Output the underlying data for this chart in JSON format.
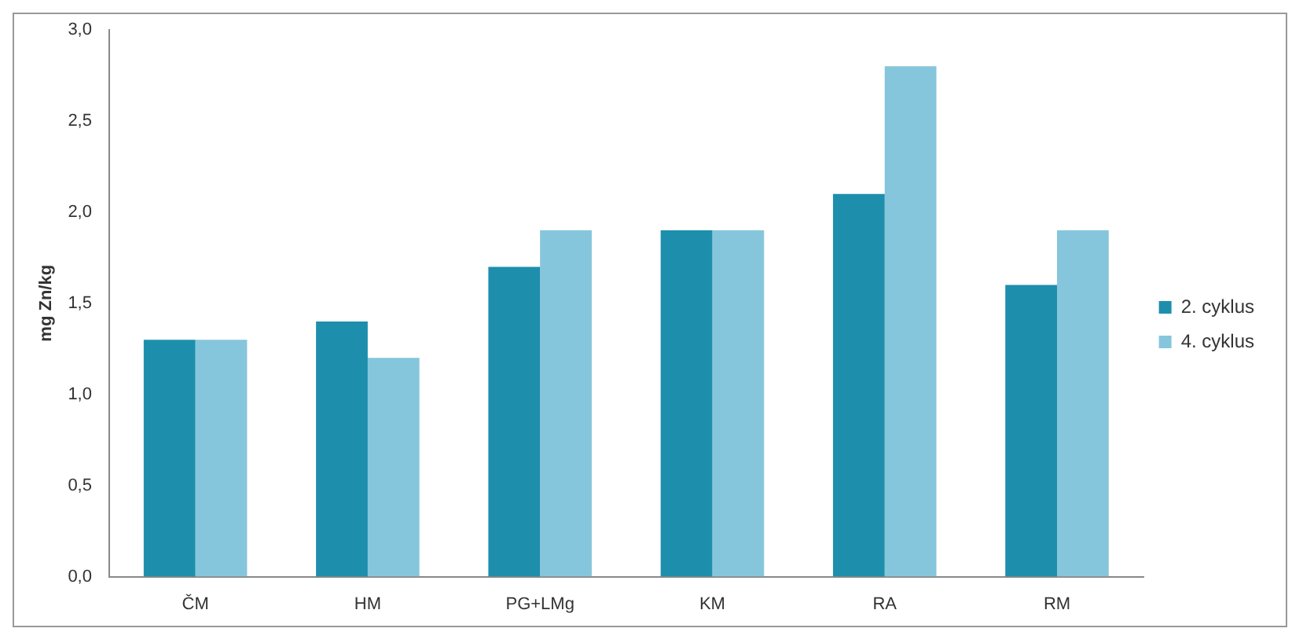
{
  "chart_data": {
    "type": "bar",
    "ylabel": "mg Zn/kg",
    "categories": [
      "ČM",
      "HM",
      "PG+LMg",
      "KM",
      "RA",
      "RM"
    ],
    "series": [
      {
        "name": "2. cyklus",
        "color": "#1d8fad",
        "values": [
          1.3,
          1.4,
          1.7,
          1.9,
          2.1,
          1.6
        ]
      },
      {
        "name": "4. cyklus",
        "color": "#86c6dc",
        "values": [
          1.3,
          1.2,
          1.9,
          1.9,
          2.8,
          1.9
        ]
      }
    ],
    "ylim": [
      0,
      3
    ],
    "yticks": [
      {
        "value": 0,
        "label": "0,0"
      },
      {
        "value": 0.5,
        "label": "0,5"
      },
      {
        "value": 1,
        "label": "1,0"
      },
      {
        "value": 1.5,
        "label": "1,5"
      },
      {
        "value": 2,
        "label": "2,0"
      },
      {
        "value": 2.5,
        "label": "2,5"
      },
      {
        "value": 3,
        "label": "3,0"
      }
    ],
    "grid": false,
    "legend": "right"
  }
}
